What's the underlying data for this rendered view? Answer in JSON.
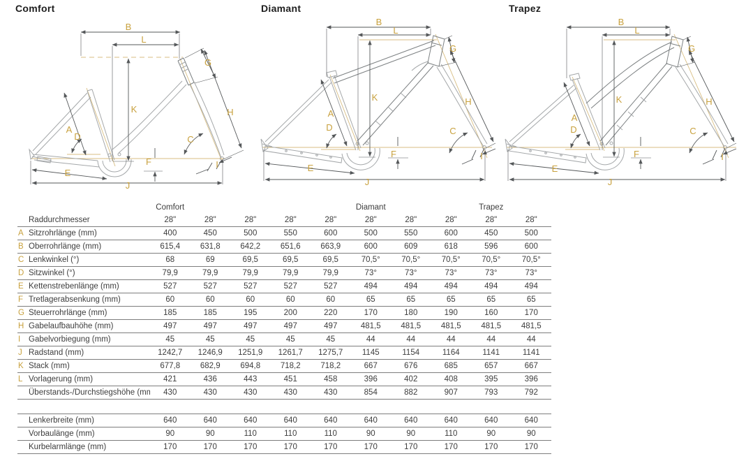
{
  "colors": {
    "accent_gold": "#c8a13e",
    "construction_gold": "#d8be83",
    "frame_gray": "#a4a7a9",
    "dimension_line": "#55585a",
    "text": "#3d3d3d",
    "table_rule": "#7d7d7d",
    "background": "#ffffff"
  },
  "letters": {
    "A": "A",
    "B": "B",
    "C": "C",
    "D": "D",
    "E": "E",
    "F": "F",
    "G": "G",
    "H": "H",
    "I": "I",
    "J": "J",
    "K": "K",
    "L": "L"
  },
  "diagrams": [
    {
      "title": "Comfort",
      "frame_type": "step-through wave frame"
    },
    {
      "title": "Diamant",
      "frame_type": "diamond frame"
    },
    {
      "title": "Trapez",
      "frame_type": "trapez frame"
    }
  ],
  "table": {
    "groups": [
      {
        "label": "Comfort",
        "col": 0
      },
      {
        "label": "Diamant",
        "col": 5
      },
      {
        "label": "Trapez",
        "col": 8
      }
    ],
    "wheel_row": {
      "letter": "",
      "label": "Raddurchmesser",
      "values": [
        "28\"",
        "28\"",
        "28\"",
        "28\"",
        "28\"",
        "28\"",
        "28\"",
        "28\"",
        "28\"",
        "28\""
      ]
    },
    "geometry_rows": [
      {
        "letter": "A",
        "label": "Sitzrohrlänge (mm)",
        "values": [
          "400",
          "450",
          "500",
          "550",
          "600",
          "500",
          "550",
          "600",
          "450",
          "500"
        ]
      },
      {
        "letter": "B",
        "label": "Oberrohrlänge (mm)",
        "values": [
          "615,4",
          "631,8",
          "642,2",
          "651,6",
          "663,9",
          "600",
          "609",
          "618",
          "596",
          "600"
        ]
      },
      {
        "letter": "C",
        "label": "Lenkwinkel (°)",
        "values": [
          "68",
          "69",
          "69,5",
          "69,5",
          "69,5",
          "70,5°",
          "70,5°",
          "70,5°",
          "70,5°",
          "70,5°"
        ]
      },
      {
        "letter": "D",
        "label": "Sitzwinkel (°)",
        "values": [
          "79,9",
          "79,9",
          "79,9",
          "79,9",
          "79,9",
          "73°",
          "73°",
          "73°",
          "73°",
          "73°"
        ]
      },
      {
        "letter": "E",
        "label": "Kettenstrebenlänge (mm)",
        "values": [
          "527",
          "527",
          "527",
          "527",
          "527",
          "494",
          "494",
          "494",
          "494",
          "494"
        ]
      },
      {
        "letter": "F",
        "label": "Tretlagerabsenkung (mm)",
        "values": [
          "60",
          "60",
          "60",
          "60",
          "60",
          "65",
          "65",
          "65",
          "65",
          "65"
        ]
      },
      {
        "letter": "G",
        "label": "Steuerrohrlänge (mm)",
        "values": [
          "185",
          "185",
          "195",
          "200",
          "220",
          "170",
          "180",
          "190",
          "160",
          "170"
        ]
      },
      {
        "letter": "H",
        "label": "Gabelaufbauhöhe (mm)",
        "values": [
          "497",
          "497",
          "497",
          "497",
          "497",
          "481,5",
          "481,5",
          "481,5",
          "481,5",
          "481,5"
        ]
      },
      {
        "letter": "I",
        "label": "Gabelvorbiegung (mm)",
        "values": [
          "45",
          "45",
          "45",
          "45",
          "45",
          "44",
          "44",
          "44",
          "44",
          "44"
        ]
      },
      {
        "letter": "J",
        "label": "Radstand (mm)",
        "values": [
          "1242,7",
          "1246,9",
          "1251,9",
          "1261,7",
          "1275,7",
          "1145",
          "1154",
          "1164",
          "1141",
          "1141"
        ]
      },
      {
        "letter": "K",
        "label": "Stack (mm)",
        "values": [
          "677,8",
          "682,9",
          "694,8",
          "718,2",
          "718,2",
          "667",
          "676",
          "685",
          "657",
          "667"
        ]
      },
      {
        "letter": "L",
        "label": "Vorlagerung (mm)",
        "values": [
          "421",
          "436",
          "443",
          "451",
          "458",
          "396",
          "402",
          "408",
          "395",
          "396"
        ]
      },
      {
        "letter": "",
        "label": "Überstands-/Durchstiegshöhe (mm)",
        "values": [
          "430",
          "430",
          "430",
          "430",
          "430",
          "854",
          "882",
          "907",
          "793",
          "792"
        ]
      }
    ],
    "component_rows": [
      {
        "letter": "",
        "label": "Lenkerbreite (mm)",
        "values": [
          "640",
          "640",
          "640",
          "640",
          "640",
          "640",
          "640",
          "640",
          "640",
          "640"
        ]
      },
      {
        "letter": "",
        "label": "Vorbaulänge (mm)",
        "values": [
          "90",
          "90",
          "110",
          "110",
          "110",
          "90",
          "90",
          "110",
          "90",
          "90"
        ]
      },
      {
        "letter": "",
        "label": "Kurbelarmlänge (mm)",
        "values": [
          "170",
          "170",
          "170",
          "170",
          "170",
          "170",
          "170",
          "170",
          "170",
          "170"
        ]
      }
    ]
  }
}
